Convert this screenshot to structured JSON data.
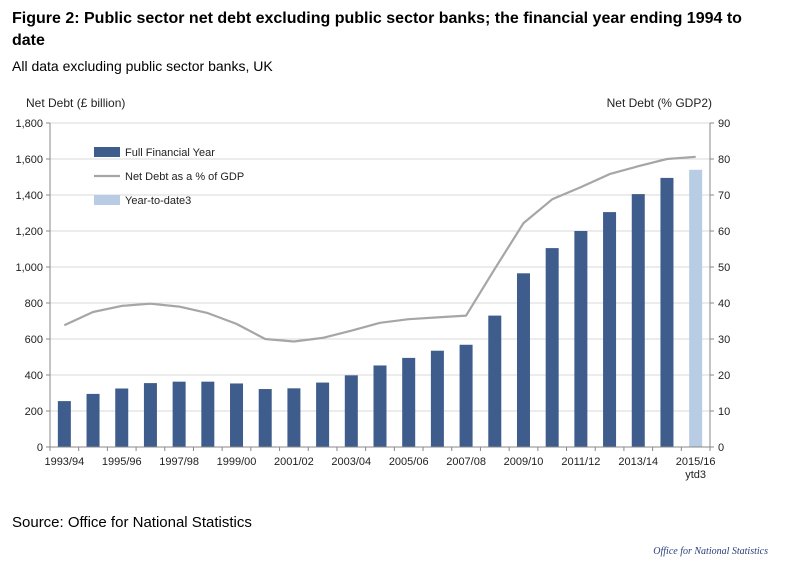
{
  "title": "Figure 2: Public sector net debt excluding public sector banks; the financial year ending 1994 to date",
  "subtitle": "All data excluding public sector banks, UK",
  "source": "Source: Office for National Statistics",
  "logo_text": "Office for National Statistics",
  "colors": {
    "bar": "#3e5c8c",
    "bar_ytd": "#b8cce4",
    "line": "#a6a6a6",
    "grid": "#d9d9d9"
  },
  "chart_data": {
    "type": "bar",
    "categories": [
      "1993/94",
      "1994/95",
      "1995/96",
      "1996/97",
      "1997/98",
      "1998/99",
      "1999/00",
      "2000/01",
      "2001/02",
      "2002/03",
      "2003/04",
      "2004/05",
      "2005/06",
      "2006/07",
      "2007/08",
      "2008/09",
      "2009/10",
      "2010/11",
      "2011/12",
      "2012/13",
      "2013/14",
      "2014/15",
      "2015/16 ytd3"
    ],
    "x_tick_labels": [
      "1993/94",
      "1995/96",
      "1997/98",
      "1999/00",
      "2001/02",
      "2003/04",
      "2005/06",
      "2007/08",
      "2009/10",
      "2011/12",
      "2013/14",
      "2015/16"
    ],
    "x_tick_label_extra": "ytd3",
    "series": [
      {
        "name": "Full Financial Year",
        "type": "bar",
        "values": [
          255,
          295,
          325,
          355,
          363,
          363,
          353,
          322,
          326,
          358,
          398,
          453,
          495,
          535,
          568,
          730,
          965,
          1105,
          1200,
          1305,
          1405,
          1495,
          null
        ]
      },
      {
        "name": "Net Debt as a % of GDP",
        "type": "line",
        "axis": "right",
        "values": [
          33.8,
          37.5,
          39.2,
          39.8,
          39.0,
          37.2,
          34.2,
          30.0,
          29.3,
          30.3,
          32.3,
          34.5,
          35.5,
          36.0,
          36.5,
          49.5,
          62.2,
          68.8,
          72.2,
          75.8,
          78.0,
          80.0,
          80.6
        ]
      },
      {
        "name": "Year-to-date3",
        "type": "bar",
        "values": [
          null,
          null,
          null,
          null,
          null,
          null,
          null,
          null,
          null,
          null,
          null,
          null,
          null,
          null,
          null,
          null,
          null,
          null,
          null,
          null,
          null,
          null,
          1540
        ]
      }
    ],
    "ylabel": "Net Debt (£ billion)",
    "ylabel_right": "Net Debt (% GDP2)",
    "ylim": [
      0,
      1800
    ],
    "yticks": [
      "0",
      "200",
      "400",
      "600",
      "800",
      "1,000",
      "1,200",
      "1,400",
      "1,600",
      "1,800"
    ],
    "ylim_right": [
      0,
      90
    ],
    "yticks_right": [
      "0",
      "10",
      "20",
      "30",
      "40",
      "50",
      "60",
      "70",
      "80",
      "90"
    ],
    "grid": true,
    "legend_position": "top-left"
  }
}
